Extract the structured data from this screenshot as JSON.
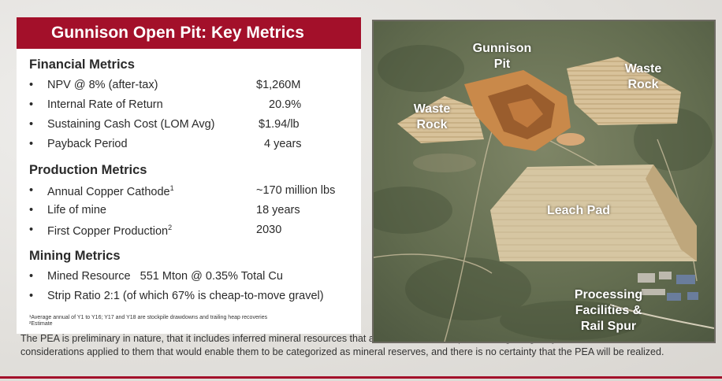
{
  "title": "Gunnison Open Pit: Key Metrics",
  "bullet": "•",
  "financial": {
    "heading": "Financial Metrics",
    "items": [
      {
        "label": "NPV @ 8% (after-tax)",
        "value": "$1,260M"
      },
      {
        "label": "Internal Rate of Return",
        "value": "20.9%"
      },
      {
        "label": "Sustaining Cash Cost (LOM Avg)",
        "value": "$1.94/lb"
      },
      {
        "label": "Payback Period",
        "value": "4 years"
      }
    ]
  },
  "production": {
    "heading": "Production Metrics",
    "items": [
      {
        "label": "Annual Copper Cathode",
        "sup": "1",
        "value": "~170 million lbs"
      },
      {
        "label": "Life of mine",
        "value": "18 years"
      },
      {
        "label": "First Copper Production",
        "sup": "2",
        "value": "2030"
      }
    ]
  },
  "mining": {
    "heading": "Mining Metrics",
    "items": [
      {
        "label": "Mined Resource   551 Mton @ 0.35% Total Cu"
      },
      {
        "label": "Strip Ratio 2:1 (of which 67% is cheap-to-move gravel)"
      }
    ]
  },
  "footnotes": [
    "¹Average annual of Y1 to Y16; Y17 and Y18 are stockpile drawdowns and trailing heap recoveries",
    "²Estimate"
  ],
  "disclaimer": "The PEA is preliminary in nature, that it includes inferred mineral resources that are considered too speculative geologically to have the economic considerations applied to them that would enable them to be categorized as mineral reserves, and there is no certainty that the PEA will be realized.",
  "map": {
    "labels": {
      "gunnison_pit_1": "Gunnison",
      "gunnison_pit_2": "Pit",
      "waste_rock_right_1": "Waste",
      "waste_rock_right_2": "Rock",
      "waste_rock_left_1": "Waste",
      "waste_rock_left_2": "Rock",
      "leach_pad": "Leach Pad",
      "processing_1": "Processing",
      "processing_2": "Facilities &",
      "processing_3": "Rail Spur"
    }
  },
  "colors": {
    "accent": "#a3102a"
  }
}
